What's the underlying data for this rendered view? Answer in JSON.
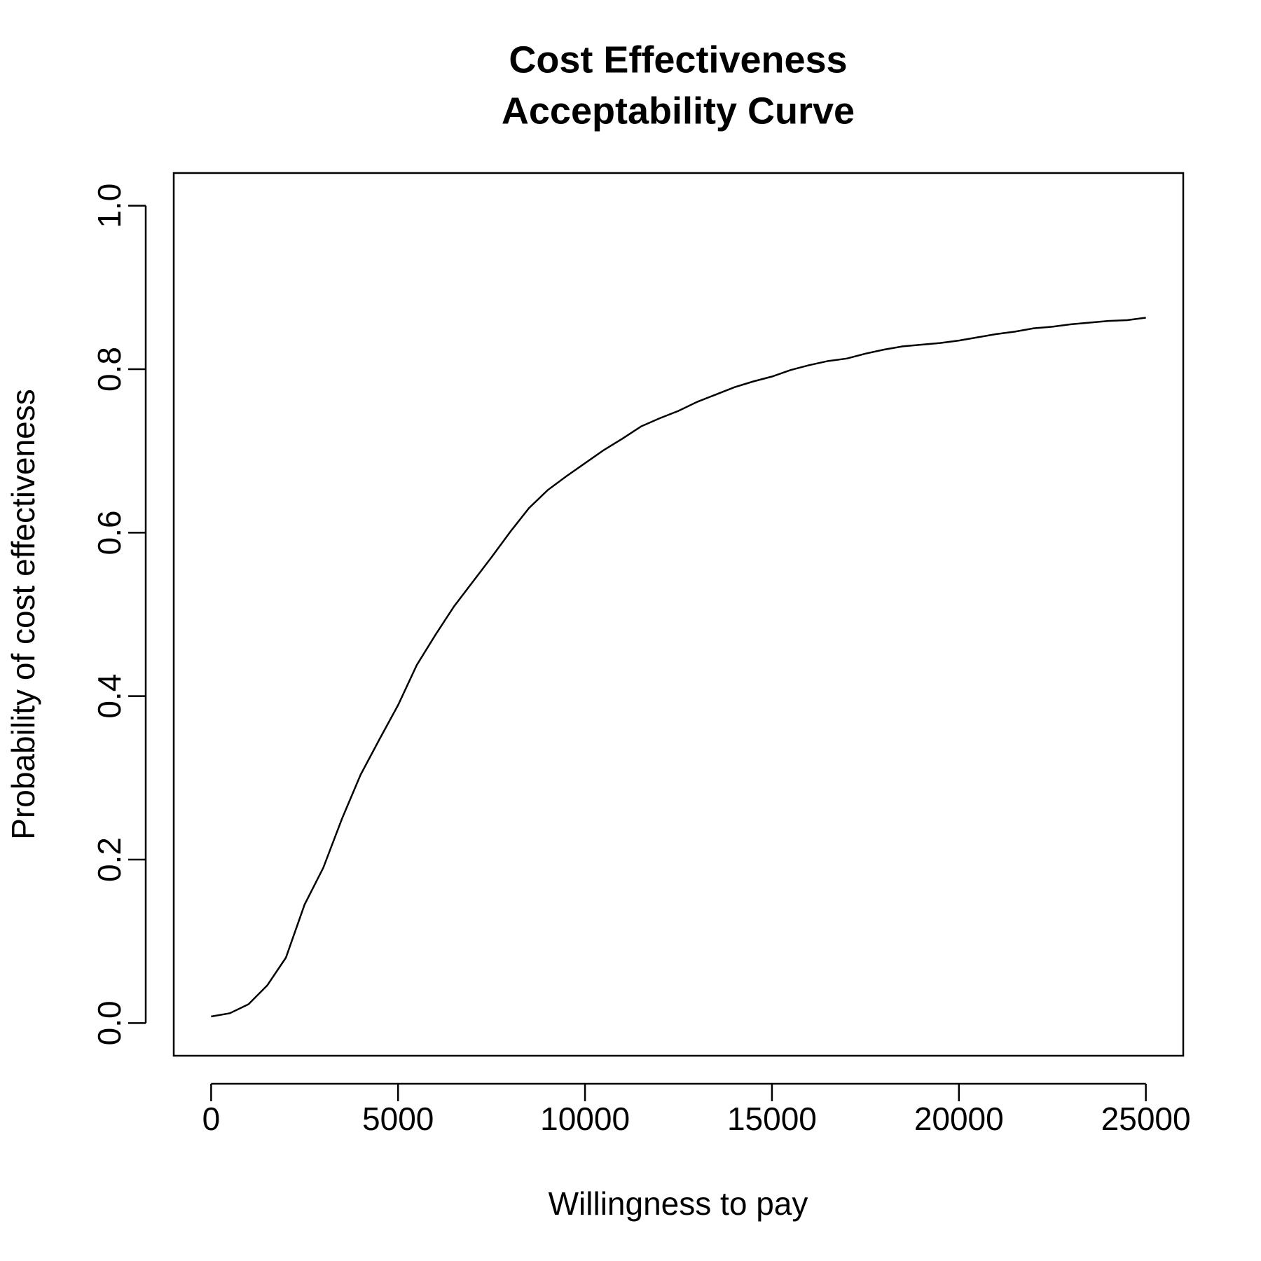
{
  "chart_data": {
    "type": "line",
    "title": [
      "Cost Effectiveness",
      "Acceptability Curve"
    ],
    "x_label": "Willingness to pay",
    "y_label": "Probability of cost effectiveness",
    "x": [
      0,
      500,
      1000,
      1500,
      2000,
      2500,
      3000,
      3500,
      4000,
      4500,
      5000,
      5500,
      6000,
      6500,
      7000,
      7500,
      8000,
      8500,
      9000,
      9500,
      10000,
      10500,
      11000,
      11500,
      12000,
      12500,
      13000,
      13500,
      14000,
      14500,
      15000,
      15500,
      16000,
      16500,
      17000,
      17500,
      18000,
      18500,
      19000,
      19500,
      20000,
      20500,
      21000,
      21500,
      22000,
      22500,
      23000,
      23500,
      24000,
      24500,
      25000
    ],
    "series": [
      {
        "color": "#000000",
        "values": [
          0.008,
          0.012,
          0.023,
          0.046,
          0.08,
          0.145,
          0.19,
          0.25,
          0.304,
          0.347,
          0.389,
          0.438,
          0.475,
          0.51,
          0.54,
          0.57,
          0.601,
          0.63,
          0.652,
          0.669,
          0.685,
          0.701,
          0.715,
          0.73,
          0.74,
          0.749,
          0.76,
          0.769,
          0.778,
          0.785,
          0.791,
          0.799,
          0.805,
          0.81,
          0.813,
          0.819,
          0.824,
          0.828,
          0.83,
          0.832,
          0.835,
          0.839,
          0.843,
          0.846,
          0.85,
          0.852,
          0.855,
          0.857,
          0.859,
          0.86,
          0.863
        ]
      }
    ],
    "xlim": [
      -1000,
      26000
    ],
    "ylim": [
      -0.04,
      1.04
    ],
    "xticks": [
      0,
      5000,
      10000,
      15000,
      20000,
      25000
    ],
    "yticks": [
      {
        "value": 0,
        "label": "0.0"
      },
      {
        "value": 0.2,
        "label": "0.2"
      },
      {
        "value": 0.4,
        "label": "0.4"
      },
      {
        "value": 0.6,
        "label": "0.6"
      },
      {
        "value": 0.8,
        "label": "0.8"
      },
      {
        "value": 1,
        "label": "1.0"
      }
    ],
    "grid": false
  }
}
